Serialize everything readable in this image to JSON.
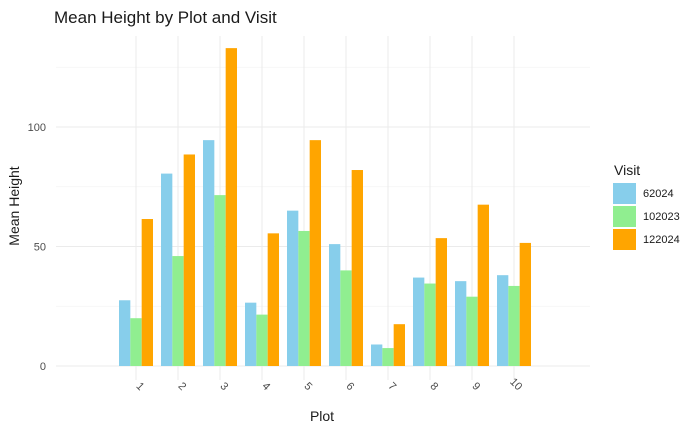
{
  "chart_data": {
    "type": "bar",
    "title": "Mean Height by Plot and Visit",
    "xlabel": "Plot",
    "ylabel": "Mean Height",
    "categories": [
      "1",
      "2",
      "3",
      "4",
      "5",
      "6",
      "7",
      "8",
      "9",
      "10"
    ],
    "series": [
      {
        "name": "62024",
        "color": "#87CEEB",
        "values": [
          27.5,
          80.5,
          94.5,
          26.5,
          65.0,
          51.0,
          9.0,
          37.0,
          35.5,
          38.0
        ]
      },
      {
        "name": "102023",
        "color": "#90EE90",
        "values": [
          20.0,
          46.0,
          71.5,
          21.5,
          56.5,
          40.0,
          7.5,
          34.5,
          29.0,
          33.5
        ]
      },
      {
        "name": "122024",
        "color": "#FFA500",
        "values": [
          61.5,
          88.5,
          133.0,
          55.5,
          94.5,
          82.0,
          17.5,
          53.5,
          67.5,
          51.5
        ]
      }
    ],
    "yticks": [
      0,
      50,
      100
    ],
    "ylim": [
      0,
      136
    ],
    "grid": true,
    "legend_title": "Visit",
    "legend_position": "right"
  }
}
